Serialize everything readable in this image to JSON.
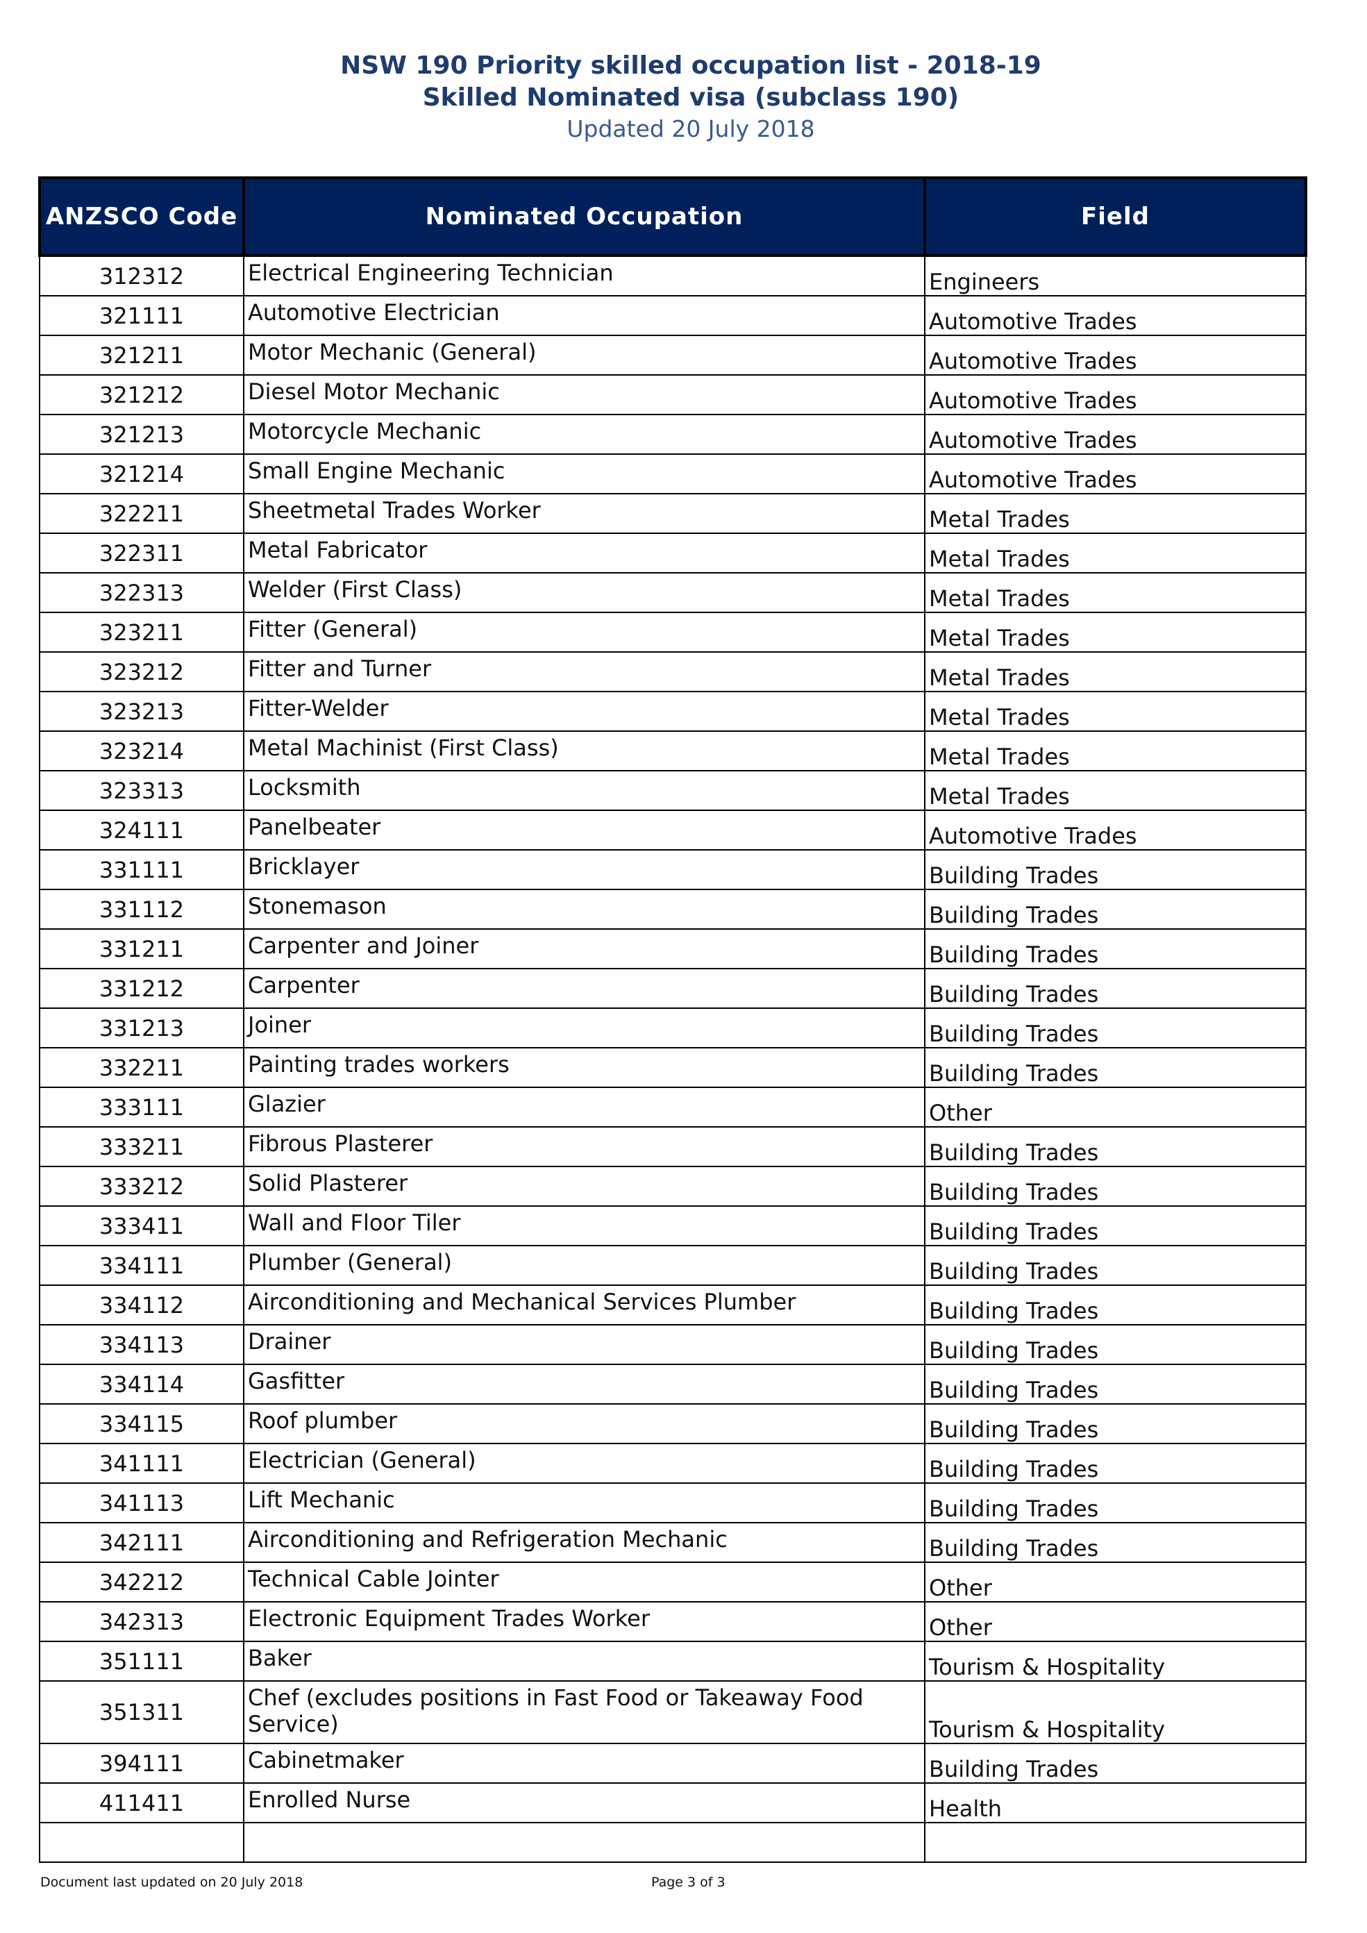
{
  "header": {
    "title": "NSW 190 Priority skilled occupation list - 2018-19",
    "subtitle": "Skilled Nominated visa (subclass 190)",
    "updated": "Updated 20 July 2018"
  },
  "table": {
    "columns": [
      "ANZSCO Code",
      "Nominated Occupation",
      "Field"
    ],
    "rows": [
      [
        "312312",
        "Electrical Engineering Technician",
        "Engineers"
      ],
      [
        "321111",
        "Automotive Electrician",
        "Automotive Trades"
      ],
      [
        "321211",
        "Motor Mechanic (General)",
        "Automotive Trades"
      ],
      [
        "321212",
        "Diesel Motor Mechanic",
        "Automotive Trades"
      ],
      [
        "321213",
        "Motorcycle Mechanic",
        "Automotive Trades"
      ],
      [
        "321214",
        "Small Engine Mechanic",
        "Automotive Trades"
      ],
      [
        "322211",
        "Sheetmetal Trades Worker",
        "Metal Trades"
      ],
      [
        "322311",
        "Metal Fabricator",
        "Metal Trades"
      ],
      [
        "322313",
        "Welder (First Class)",
        "Metal Trades"
      ],
      [
        "323211",
        "Fitter (General)",
        "Metal Trades"
      ],
      [
        "323212",
        "Fitter and Turner",
        "Metal Trades"
      ],
      [
        "323213",
        "Fitter-Welder",
        "Metal Trades"
      ],
      [
        "323214",
        "Metal Machinist (First Class)",
        "Metal Trades"
      ],
      [
        "323313",
        "Locksmith",
        "Metal Trades"
      ],
      [
        "324111",
        "Panelbeater",
        "Automotive Trades"
      ],
      [
        "331111",
        "Bricklayer",
        "Building Trades"
      ],
      [
        "331112",
        "Stonemason",
        "Building Trades"
      ],
      [
        "331211",
        "Carpenter and Joiner",
        "Building Trades"
      ],
      [
        "331212",
        "Carpenter",
        "Building Trades"
      ],
      [
        "331213",
        "Joiner",
        "Building Trades"
      ],
      [
        "332211",
        "Painting trades workers",
        "Building Trades"
      ],
      [
        "333111",
        "Glazier",
        "Other"
      ],
      [
        "333211",
        "Fibrous Plasterer",
        "Building Trades"
      ],
      [
        "333212",
        "Solid Plasterer",
        "Building Trades"
      ],
      [
        "333411",
        "Wall and Floor Tiler",
        "Building Trades"
      ],
      [
        "334111",
        "Plumber (General)",
        "Building Trades"
      ],
      [
        "334112",
        "Airconditioning and Mechanical Services Plumber",
        "Building Trades"
      ],
      [
        "334113",
        "Drainer",
        "Building Trades"
      ],
      [
        "334114",
        "Gasfitter",
        "Building Trades"
      ],
      [
        "334115",
        "Roof plumber",
        "Building Trades"
      ],
      [
        "341111",
        "Electrician (General)",
        "Building Trades"
      ],
      [
        "341113",
        "Lift Mechanic",
        "Building Trades"
      ],
      [
        "342111",
        "Airconditioning and Refrigeration Mechanic",
        "Building Trades"
      ],
      [
        "342212",
        "Technical Cable Jointer",
        "Other"
      ],
      [
        "342313",
        "Electronic Equipment Trades Worker",
        "Other"
      ],
      [
        "351111",
        "Baker",
        "Tourism & Hospitality"
      ],
      [
        "351311",
        "Chef (excludes positions in Fast Food or Takeaway Food Service)",
        "Tourism & Hospitality"
      ],
      [
        "394111",
        "Cabinetmaker",
        "Building Trades"
      ],
      [
        "411411",
        "Enrolled Nurse",
        "Health"
      ],
      [
        "",
        "",
        ""
      ]
    ]
  },
  "footer": {
    "left": "Document last updated on 20 July 2018",
    "page": "Page 3 of 3"
  },
  "colors": {
    "header_bg": "#00205b",
    "title": "#1f3c6e"
  }
}
